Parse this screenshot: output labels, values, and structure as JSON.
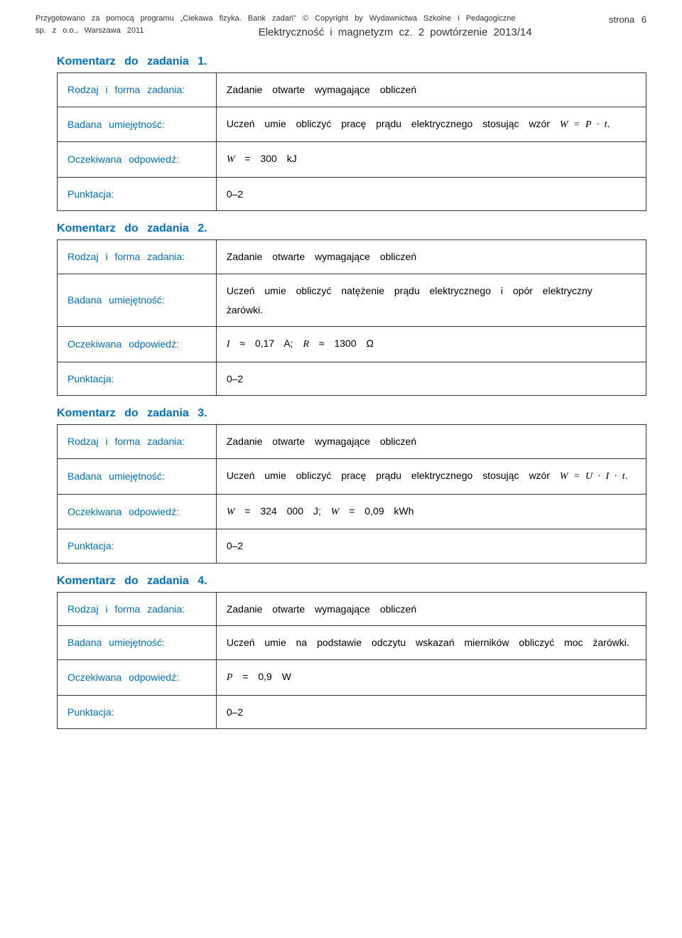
{
  "header": {
    "line1_left": "Przygotowano za pomocą programu „Ciekawa fizyka. Bank zadań\" © Copyright by Wydawnictwa Szkolne i Pedagogiczne",
    "line1_right": "strona 6",
    "line2_left": "sp. z o.o., Warszawa 2011",
    "line2_center": "Elektryczność i magnetyzm cz. 2 powtórzenie 2013/14"
  },
  "labels": {
    "rodzaj": "Rodzaj i forma zadania:",
    "badana": "Badana umiejętność:",
    "oczekiwana": "Oczekiwana odpowiedź:",
    "punktacja": "Punktacja:",
    "zadanie_otwarte": "Zadanie otwarte wymagające obliczeń"
  },
  "tasks": {
    "k1": {
      "title": "Komentarz do zadania 1.",
      "badana": "Uczeń umie obliczyć pracę prądu elektrycznego stosując wzór <span class=\"formula\">W = P · t</span>.",
      "oczekiwana": "<span class=\"formula\">W</span> = 300 kJ",
      "punktacja": "0–2"
    },
    "k2": {
      "title": "Komentarz do zadania 2.",
      "badana": "Uczeń umie obliczyć natężenie prądu elektrycznego i opór elektryczny żarówki.",
      "oczekiwana": "<span class=\"formula\">I</span> ≈ 0,17 A; <span class=\"formula\">R</span> ≈ 1300 Ω",
      "punktacja": "0–2"
    },
    "k3": {
      "title": "Komentarz do zadania 3.",
      "badana": "Uczeń umie obliczyć pracę prądu elektrycznego stosując wzór <span class=\"formula\">W = U · I · t</span>.",
      "oczekiwana": "<span class=\"formula\">W</span> = 324 000 J; <span class=\"formula\">W</span> = 0,09 kWh",
      "punktacja": "0–2"
    },
    "k4": {
      "title": "Komentarz do zadania 4.",
      "badana": "Uczeń umie na podstawie odczytu wskazań mierników obliczyć moc żarówki.",
      "oczekiwana": "<span class=\"formula\">P</span> = 0,9 W",
      "punktacja": "0–2"
    }
  }
}
